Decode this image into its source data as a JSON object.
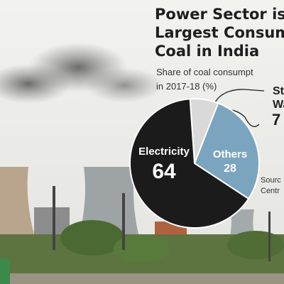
{
  "chart_data": {
    "type": "pie",
    "title": [
      "Power Sector is",
      "Largest Consump",
      "Coal in India"
    ],
    "subtitle": [
      "Share of coal consumpt",
      "in 2017-18 (%)"
    ],
    "categories": [
      "Electricity",
      "Others",
      [
        "Ste",
        "Wa"
      ]
    ],
    "values": [
      64,
      28,
      7
    ],
    "colors": [
      "#1b1b1b",
      "#7ba4bf",
      "#d9d9d9"
    ],
    "source": [
      "Sourc",
      "Centr"
    ]
  }
}
